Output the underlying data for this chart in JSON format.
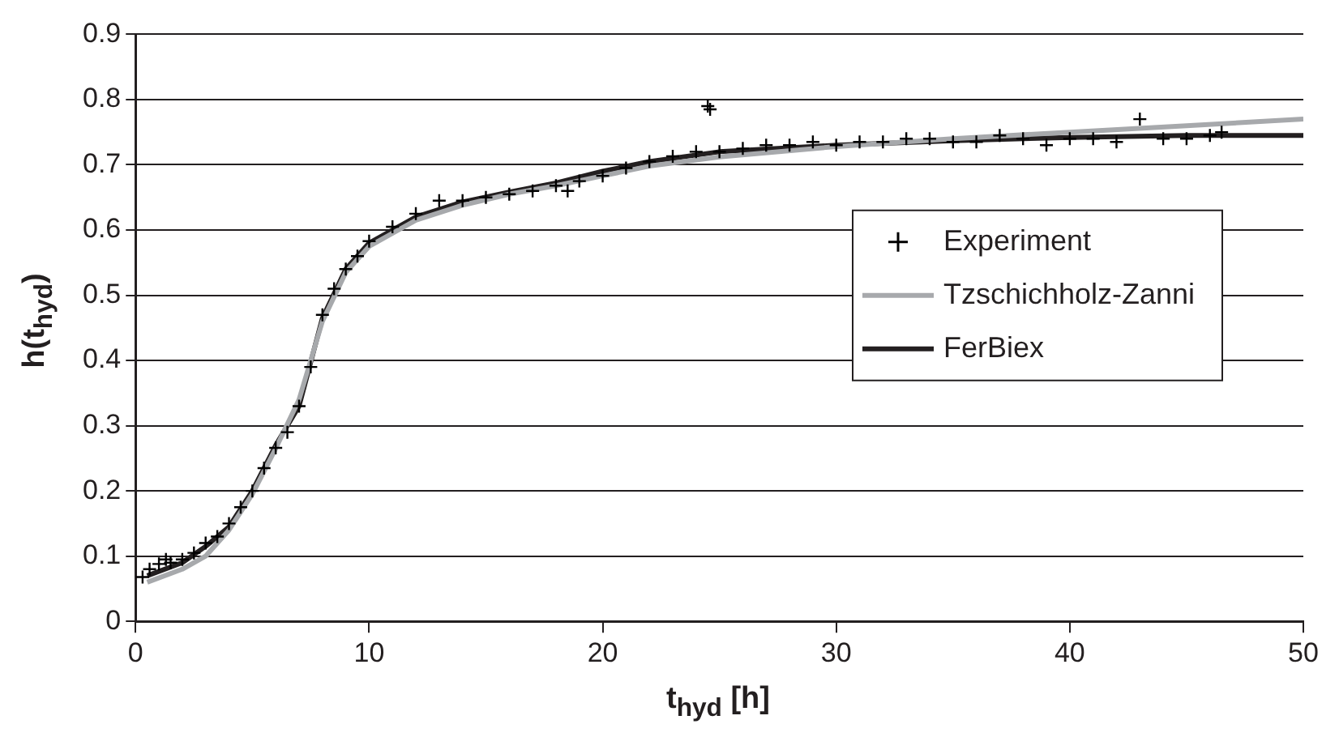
{
  "chart_data": {
    "type": "scatter",
    "xlabel": "t$_{hyd}$ [h]",
    "ylabel": "h(t$_{hyd}$)",
    "xlim": [
      0,
      50
    ],
    "xticks": [
      0,
      10,
      20,
      30,
      40,
      50
    ],
    "ylim": [
      0,
      0.9
    ],
    "yticks": [
      0,
      0.1,
      0.2,
      0.3,
      0.4,
      0.5,
      0.6,
      0.7,
      0.8,
      0.9
    ],
    "grid": "y",
    "legend": "right",
    "series": [
      {
        "name": "Experiment",
        "type": "scatter",
        "marker": "cross",
        "color": "#000000",
        "x": [
          0.3,
          0.6,
          1,
          1.3,
          1.5,
          2,
          2.5,
          3,
          3.5,
          4,
          4.5,
          5,
          5.5,
          6,
          6.5,
          7,
          7.5,
          8,
          8.5,
          9,
          9.5,
          10,
          11,
          12,
          13,
          14,
          15,
          16,
          17,
          18,
          18.5,
          19,
          20,
          21,
          22,
          23,
          24,
          24.5,
          24.6,
          25,
          26,
          27,
          28,
          29,
          30,
          31,
          32,
          33,
          34,
          35,
          36,
          37,
          38,
          39,
          40,
          41,
          42,
          43,
          44,
          45,
          46,
          46.5
        ],
        "values": [
          0.068,
          0.08,
          0.088,
          0.095,
          0.09,
          0.095,
          0.105,
          0.12,
          0.13,
          0.15,
          0.175,
          0.2,
          0.235,
          0.266,
          0.29,
          0.33,
          0.39,
          0.47,
          0.51,
          0.54,
          0.56,
          0.583,
          0.605,
          0.625,
          0.645,
          0.645,
          0.65,
          0.655,
          0.66,
          0.668,
          0.66,
          0.675,
          0.683,
          0.695,
          0.705,
          0.713,
          0.72,
          0.79,
          0.785,
          0.72,
          0.725,
          0.73,
          0.73,
          0.735,
          0.73,
          0.735,
          0.735,
          0.74,
          0.74,
          0.735,
          0.735,
          0.745,
          0.74,
          0.73,
          0.74,
          0.74,
          0.735,
          0.77,
          0.74,
          0.74,
          0.745,
          0.75
        ]
      },
      {
        "name": "Tzschichholz-Zanni",
        "type": "line",
        "marker": "none",
        "color": "#a7a9ac",
        "x": [
          0.5,
          2,
          3,
          4,
          5,
          6,
          7,
          8,
          9,
          10,
          12,
          14,
          16,
          18,
          20,
          22,
          25,
          30,
          35,
          40,
          45,
          50
        ],
        "values": [
          0.06,
          0.08,
          0.1,
          0.14,
          0.195,
          0.265,
          0.34,
          0.46,
          0.535,
          0.575,
          0.615,
          0.638,
          0.655,
          0.668,
          0.683,
          0.698,
          0.712,
          0.728,
          0.74,
          0.75,
          0.76,
          0.77
        ]
      },
      {
        "name": "FerBiex",
        "type": "line",
        "marker": "none",
        "color": "#231f20",
        "x": [
          0.5,
          2,
          3,
          4,
          5,
          6,
          7,
          8,
          9,
          10,
          12,
          14,
          16,
          18,
          20,
          22,
          25,
          30,
          35,
          40,
          45,
          50
        ],
        "values": [
          0.07,
          0.09,
          0.115,
          0.145,
          0.2,
          0.27,
          0.33,
          0.465,
          0.54,
          0.58,
          0.62,
          0.643,
          0.658,
          0.672,
          0.69,
          0.705,
          0.72,
          0.73,
          0.737,
          0.742,
          0.745,
          0.745
        ]
      }
    ]
  }
}
